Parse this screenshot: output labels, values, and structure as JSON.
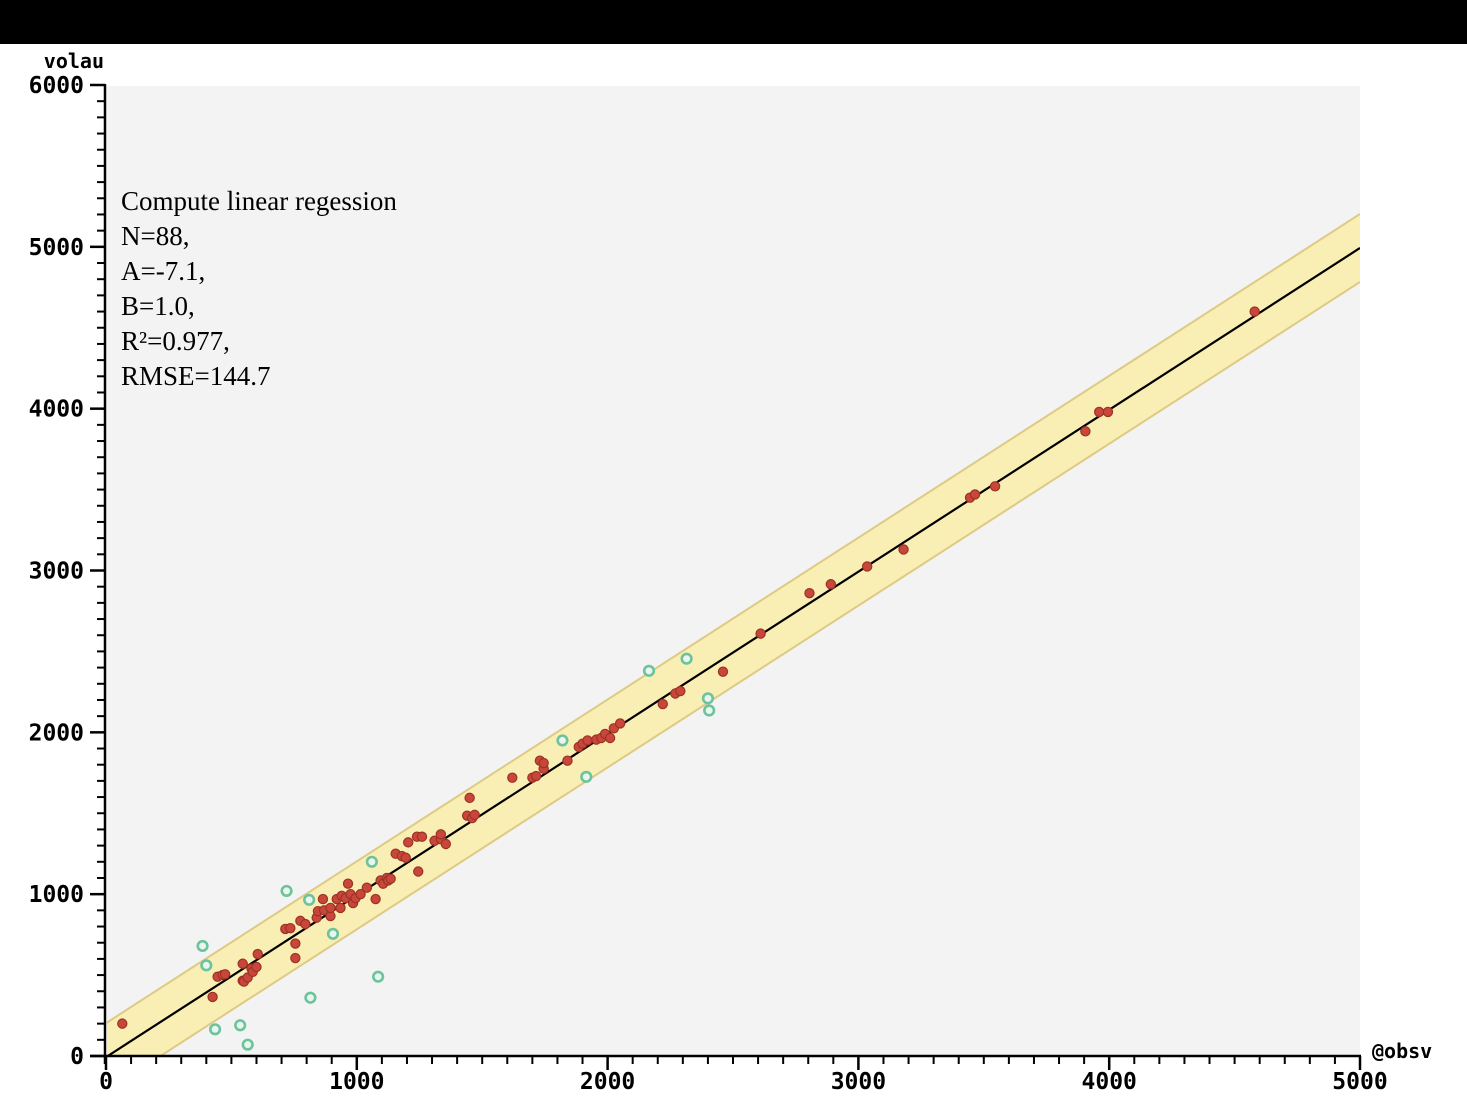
{
  "chart_data": {
    "type": "scatter",
    "title": "",
    "xlabel": "@obsv",
    "ylabel": "volau",
    "xlim": [
      0,
      5000
    ],
    "ylim": [
      0,
      6000
    ],
    "x_major_ticks": [
      0,
      1000,
      2000,
      3000,
      4000,
      5000
    ],
    "y_major_ticks": [
      0,
      1000,
      2000,
      3000,
      4000,
      5000,
      6000
    ],
    "minor_tick_step": 100,
    "grid": false,
    "legend": "none",
    "annotation": {
      "lines": [
        "Compute linear regession",
        "N=88,",
        "A=-7.1,",
        "B=1.0,",
        "R²=0.977,",
        "RMSE=144.7"
      ]
    },
    "regression": {
      "N": 88,
      "A": -7.1,
      "B": 1.0,
      "R2": 0.977,
      "RMSE": 144.7,
      "band_half_width_y_units": 210
    },
    "series": [
      {
        "name": "regression-points",
        "marker": "filled-dot",
        "color": "#c9473a",
        "edge_color": "#9c3226",
        "points": [
          [
            65,
            200
          ],
          [
            425,
            365
          ],
          [
            445,
            490
          ],
          [
            465,
            500
          ],
          [
            475,
            505
          ],
          [
            545,
            465
          ],
          [
            545,
            570
          ],
          [
            550,
            460
          ],
          [
            565,
            485
          ],
          [
            580,
            540
          ],
          [
            585,
            520
          ],
          [
            600,
            550
          ],
          [
            605,
            630
          ],
          [
            715,
            785
          ],
          [
            735,
            790
          ],
          [
            755,
            605
          ],
          [
            755,
            695
          ],
          [
            775,
            835
          ],
          [
            795,
            815
          ],
          [
            840,
            855
          ],
          [
            845,
            895
          ],
          [
            865,
            970
          ],
          [
            870,
            900
          ],
          [
            895,
            865
          ],
          [
            895,
            915
          ],
          [
            920,
            970
          ],
          [
            935,
            915
          ],
          [
            940,
            990
          ],
          [
            955,
            975
          ],
          [
            965,
            1065
          ],
          [
            975,
            1000
          ],
          [
            985,
            945
          ],
          [
            995,
            975
          ],
          [
            1015,
            1000
          ],
          [
            1040,
            1040
          ],
          [
            1075,
            970
          ],
          [
            1095,
            1085
          ],
          [
            1105,
            1065
          ],
          [
            1120,
            1100
          ],
          [
            1125,
            1085
          ],
          [
            1135,
            1095
          ],
          [
            1155,
            1250
          ],
          [
            1180,
            1235
          ],
          [
            1195,
            1225
          ],
          [
            1205,
            1320
          ],
          [
            1240,
            1355
          ],
          [
            1245,
            1140
          ],
          [
            1260,
            1355
          ],
          [
            1310,
            1330
          ],
          [
            1335,
            1340
          ],
          [
            1335,
            1370
          ],
          [
            1355,
            1310
          ],
          [
            1440,
            1485
          ],
          [
            1450,
            1595
          ],
          [
            1460,
            1470
          ],
          [
            1470,
            1490
          ],
          [
            1620,
            1720
          ],
          [
            1700,
            1720
          ],
          [
            1715,
            1730
          ],
          [
            1730,
            1825
          ],
          [
            1745,
            1775
          ],
          [
            1745,
            1810
          ],
          [
            1840,
            1825
          ],
          [
            1885,
            1910
          ],
          [
            1900,
            1930
          ],
          [
            1920,
            1950
          ],
          [
            1955,
            1955
          ],
          [
            1975,
            1965
          ],
          [
            1990,
            1990
          ],
          [
            2010,
            1965
          ],
          [
            2025,
            2025
          ],
          [
            2050,
            2055
          ],
          [
            2220,
            2175
          ],
          [
            2270,
            2240
          ],
          [
            2290,
            2255
          ],
          [
            2460,
            2375
          ],
          [
            2610,
            2610
          ],
          [
            2805,
            2860
          ],
          [
            2890,
            2915
          ],
          [
            3035,
            3025
          ],
          [
            3180,
            3130
          ],
          [
            3445,
            3450
          ],
          [
            3465,
            3470
          ],
          [
            3545,
            3520
          ],
          [
            3905,
            3860
          ],
          [
            3960,
            3980
          ],
          [
            3995,
            3980
          ],
          [
            4580,
            4600
          ]
        ]
      },
      {
        "name": "outlier-points",
        "marker": "ring-dot",
        "color": "#6cc39c",
        "fill_color": "#e9f6ee",
        "points": [
          [
            385,
            680
          ],
          [
            400,
            560
          ],
          [
            435,
            165
          ],
          [
            535,
            190
          ],
          [
            565,
            70
          ],
          [
            720,
            1020
          ],
          [
            810,
            965
          ],
          [
            815,
            360
          ],
          [
            905,
            755
          ],
          [
            1060,
            1200
          ],
          [
            1085,
            490
          ],
          [
            1820,
            1950
          ],
          [
            1915,
            1725
          ],
          [
            2165,
            2380
          ],
          [
            2315,
            2455
          ],
          [
            2400,
            2210
          ],
          [
            2405,
            2135
          ]
        ]
      }
    ],
    "colors": {
      "plot_bg": "#f3f3f3",
      "band": "#f9efb4",
      "band_edge": "#ddca84",
      "line": "#000000",
      "axis": "#000000",
      "top_bar": "#000000"
    }
  }
}
